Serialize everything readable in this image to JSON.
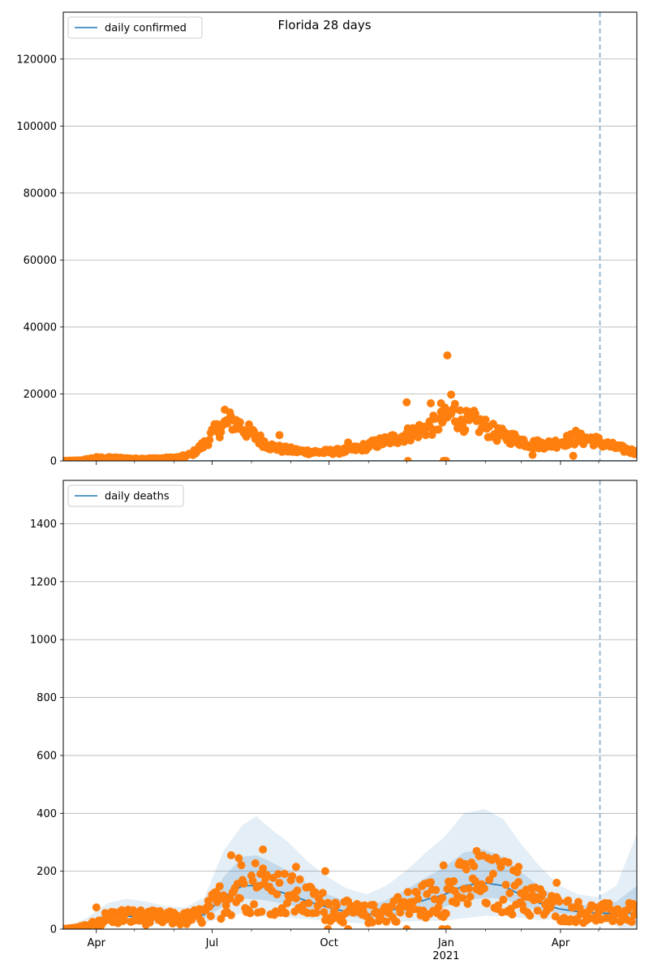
{
  "title": "Florida 28 days",
  "colors": {
    "line": "#1f77b4",
    "points": "#ff7f0e",
    "band": "#1f77b4",
    "vline": "#7fa9c9",
    "grid": "#b0b0b0"
  },
  "x_axis": {
    "range": [
      "2020-03-06",
      "2021-05-31"
    ],
    "major_ticks": [
      {
        "date": "2020-04-01",
        "label": "Apr"
      },
      {
        "date": "2020-07-01",
        "label": "Jul"
      },
      {
        "date": "2020-10-01",
        "label": "Oct"
      },
      {
        "date": "2021-01-01",
        "label": "Jan"
      },
      {
        "date": "2021-04-01",
        "label": "Apr"
      }
    ],
    "year_label": {
      "date": "2021-01-01",
      "label": "2021"
    },
    "minor_ticks": [
      "2020-05-01",
      "2020-06-01",
      "2020-08-01",
      "2020-09-01",
      "2020-11-01",
      "2020-12-01",
      "2021-02-01",
      "2021-03-01",
      "2021-05-01"
    ],
    "vline_date": "2021-05-02"
  },
  "chart_data": [
    {
      "type": "scatter",
      "legend": "daily confirmed",
      "legend_position": "top-left",
      "ylim": [
        0,
        134000
      ],
      "yticks": [
        "0",
        "20000",
        "40000",
        "60000",
        "80000",
        "100000",
        "120000"
      ],
      "yticks_values": [
        0,
        20000,
        40000,
        60000,
        80000,
        100000,
        120000
      ],
      "grid": true,
      "line_value": 0,
      "series_key": "daily confirmed points",
      "anchors": [
        [
          "2020-03-06",
          0
        ],
        [
          "2020-03-20",
          150
        ],
        [
          "2020-03-31",
          900
        ],
        [
          "2020-04-15",
          900
        ],
        [
          "2020-05-01",
          600
        ],
        [
          "2020-05-20",
          700
        ],
        [
          "2020-06-05",
          1000
        ],
        [
          "2020-06-15",
          2000
        ],
        [
          "2020-06-25",
          5000
        ],
        [
          "2020-07-01",
          8000
        ],
        [
          "2020-07-08",
          10000
        ],
        [
          "2020-07-16",
          12000
        ],
        [
          "2020-07-25",
          10000
        ],
        [
          "2020-08-05",
          7000
        ],
        [
          "2020-08-15",
          4500
        ],
        [
          "2020-08-25",
          3500
        ],
        [
          "2020-09-10",
          2800
        ],
        [
          "2020-09-25",
          2600
        ],
        [
          "2020-10-10",
          2900
        ],
        [
          "2020-10-25",
          3800
        ],
        [
          "2020-11-10",
          5500
        ],
        [
          "2020-11-25",
          7000
        ],
        [
          "2020-12-10",
          9000
        ],
        [
          "2020-12-25",
          11000
        ],
        [
          "2021-01-05",
          14000
        ],
        [
          "2021-01-15",
          12000
        ],
        [
          "2021-01-30",
          10500
        ],
        [
          "2021-02-10",
          8000
        ],
        [
          "2021-02-25",
          6500
        ],
        [
          "2021-03-10",
          5000
        ],
        [
          "2021-03-25",
          5000
        ],
        [
          "2021-04-10",
          6500
        ],
        [
          "2021-04-25",
          6500
        ],
        [
          "2021-05-10",
          4500
        ],
        [
          "2021-05-31",
          2500
        ]
      ],
      "outliers": [
        [
          "2021-01-02",
          31500
        ],
        [
          "2020-12-01",
          17500
        ],
        [
          "2021-01-05",
          19800
        ],
        [
          "2020-12-20",
          17200
        ],
        [
          "2020-12-28",
          17200
        ],
        [
          "2021-01-08",
          17000
        ],
        [
          "2021-01-23",
          15000
        ],
        [
          "2020-07-11",
          15300
        ],
        [
          "2020-08-23",
          7700
        ],
        [
          "2020-12-30",
          0
        ],
        [
          "2021-01-01",
          0
        ],
        [
          "2020-12-02",
          0
        ],
        [
          "2021-04-13",
          9000
        ],
        [
          "2021-04-11",
          1500
        ],
        [
          "2021-03-10",
          1800
        ],
        [
          "2020-10-16",
          5500
        ]
      ]
    },
    {
      "type": "scatter",
      "legend": "daily deaths",
      "legend_position": "top-left",
      "ylim": [
        0,
        1550
      ],
      "yticks": [
        "0",
        "200",
        "400",
        "600",
        "800",
        "1000",
        "1200",
        "1400"
      ],
      "yticks_values": [
        0,
        200,
        400,
        600,
        800,
        1000,
        1200,
        1400
      ],
      "grid": true,
      "anchors": [
        [
          "2020-03-06",
          0
        ],
        [
          "2020-03-25",
          10
        ],
        [
          "2020-04-10",
          40
        ],
        [
          "2020-04-25",
          45
        ],
        [
          "2020-05-10",
          40
        ],
        [
          "2020-05-25",
          38
        ],
        [
          "2020-06-10",
          35
        ],
        [
          "2020-06-25",
          50
        ],
        [
          "2020-07-10",
          110
        ],
        [
          "2020-07-25",
          150
        ],
        [
          "2020-08-05",
          150
        ],
        [
          "2020-08-15",
          140
        ],
        [
          "2020-08-30",
          120
        ],
        [
          "2020-09-15",
          95
        ],
        [
          "2020-09-30",
          75
        ],
        [
          "2020-10-15",
          60
        ],
        [
          "2020-10-31",
          50
        ],
        [
          "2020-11-15",
          60
        ],
        [
          "2020-11-30",
          80
        ],
        [
          "2020-12-15",
          100
        ],
        [
          "2020-12-31",
          120
        ],
        [
          "2021-01-15",
          150
        ],
        [
          "2021-01-31",
          160
        ],
        [
          "2021-02-15",
          150
        ],
        [
          "2021-02-28",
          120
        ],
        [
          "2021-03-15",
          90
        ],
        [
          "2021-03-31",
          70
        ],
        [
          "2021-04-15",
          60
        ],
        [
          "2021-04-30",
          55
        ],
        [
          "2021-05-15",
          55
        ],
        [
          "2021-05-31",
          55
        ]
      ],
      "band_outer_upper": [
        [
          "2020-03-06",
          0
        ],
        [
          "2020-03-25",
          40
        ],
        [
          "2020-04-10",
          90
        ],
        [
          "2020-04-25",
          105
        ],
        [
          "2020-05-10",
          95
        ],
        [
          "2020-05-25",
          80
        ],
        [
          "2020-06-10",
          75
        ],
        [
          "2020-06-25",
          110
        ],
        [
          "2020-07-10",
          270
        ],
        [
          "2020-07-25",
          360
        ],
        [
          "2020-08-05",
          390
        ],
        [
          "2020-08-15",
          350
        ],
        [
          "2020-08-30",
          300
        ],
        [
          "2020-09-15",
          230
        ],
        [
          "2020-09-30",
          180
        ],
        [
          "2020-10-15",
          140
        ],
        [
          "2020-10-31",
          120
        ],
        [
          "2020-11-15",
          150
        ],
        [
          "2020-11-30",
          200
        ],
        [
          "2020-12-15",
          260
        ],
        [
          "2020-12-31",
          320
        ],
        [
          "2021-01-15",
          400
        ],
        [
          "2021-01-31",
          415
        ],
        [
          "2021-02-15",
          380
        ],
        [
          "2021-02-28",
          300
        ],
        [
          "2021-03-15",
          220
        ],
        [
          "2021-03-31",
          150
        ],
        [
          "2021-04-15",
          120
        ],
        [
          "2021-04-30",
          110
        ],
        [
          "2021-05-15",
          150
        ],
        [
          "2021-05-31",
          330
        ]
      ],
      "band_inner_upper": [
        [
          "2020-03-06",
          0
        ],
        [
          "2020-03-25",
          20
        ],
        [
          "2020-04-10",
          60
        ],
        [
          "2020-04-25",
          70
        ],
        [
          "2020-05-10",
          60
        ],
        [
          "2020-05-25",
          55
        ],
        [
          "2020-06-10",
          50
        ],
        [
          "2020-06-25",
          75
        ],
        [
          "2020-07-10",
          180
        ],
        [
          "2020-07-25",
          250
        ],
        [
          "2020-08-05",
          255
        ],
        [
          "2020-08-15",
          235
        ],
        [
          "2020-08-30",
          200
        ],
        [
          "2020-09-15",
          155
        ],
        [
          "2020-09-30",
          120
        ],
        [
          "2020-10-15",
          95
        ],
        [
          "2020-10-31",
          80
        ],
        [
          "2020-11-15",
          100
        ],
        [
          "2020-11-30",
          135
        ],
        [
          "2020-12-15",
          175
        ],
        [
          "2020-12-31",
          215
        ],
        [
          "2021-01-15",
          265
        ],
        [
          "2021-01-31",
          275
        ],
        [
          "2021-02-15",
          250
        ],
        [
          "2021-02-28",
          200
        ],
        [
          "2021-03-15",
          150
        ],
        [
          "2021-03-31",
          105
        ],
        [
          "2021-04-15",
          85
        ],
        [
          "2021-04-30",
          80
        ],
        [
          "2021-05-15",
          95
        ],
        [
          "2021-05-31",
          150
        ]
      ],
      "outliers": [
        [
          "2020-08-10",
          275
        ],
        [
          "2020-07-16",
          255
        ],
        [
          "2020-07-22",
          245
        ],
        [
          "2021-01-25",
          270
        ],
        [
          "2020-09-05",
          215
        ],
        [
          "2020-09-28",
          200
        ],
        [
          "2021-03-29",
          160
        ],
        [
          "2020-04-01",
          75
        ],
        [
          "2020-12-30",
          220
        ],
        [
          "2020-12-29",
          0
        ],
        [
          "2021-01-02",
          0
        ],
        [
          "2020-12-01",
          0
        ],
        [
          "2020-10-16",
          0
        ],
        [
          "2020-09-30",
          0
        ],
        [
          "2021-02-19",
          230
        ],
        [
          "2021-02-27",
          215
        ]
      ]
    }
  ]
}
